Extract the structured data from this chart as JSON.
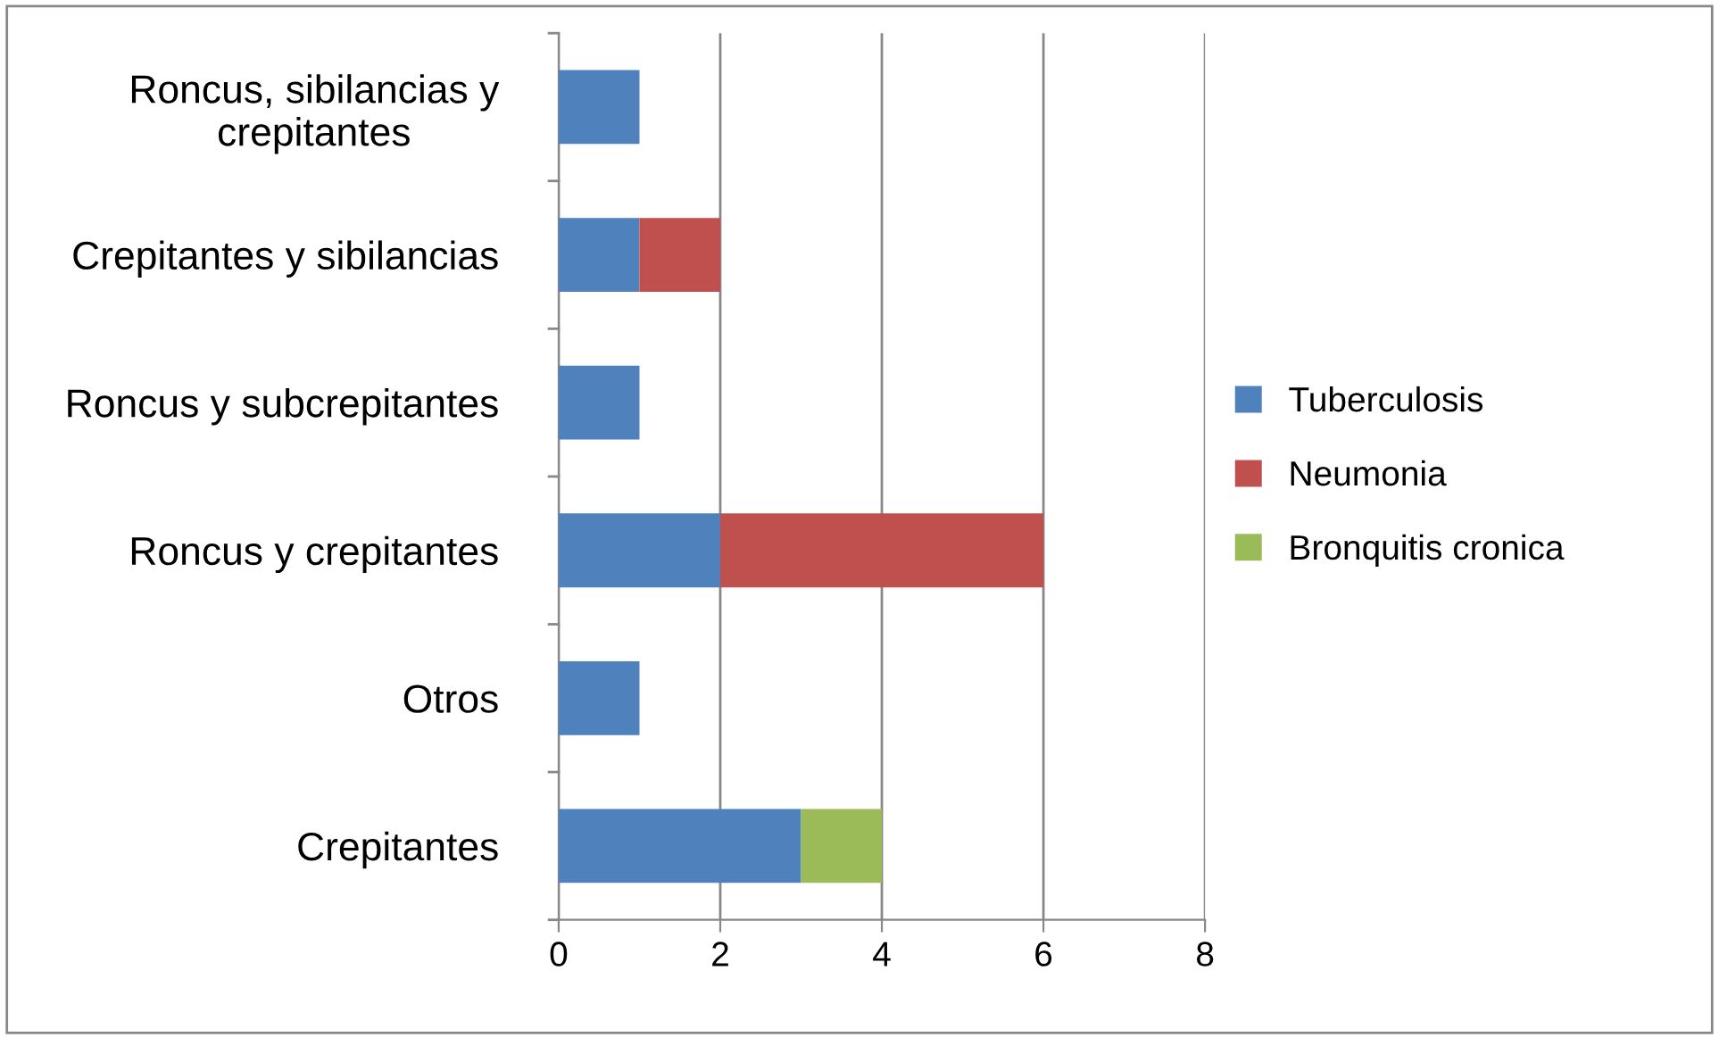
{
  "chart_data": {
    "type": "bar",
    "orientation": "horizontal",
    "stacked": true,
    "categories": [
      "Roncus, sibilancias y crepitantes",
      "Crepitantes y sibilancias",
      "Roncus y subcrepitantes",
      "Roncus y crepitantes",
      "Otros",
      "Crepitantes"
    ],
    "series": [
      {
        "name": "Tuberculosis",
        "color": "#4f81bd",
        "values": [
          1,
          1,
          1,
          2,
          1,
          3
        ]
      },
      {
        "name": "Neumonia",
        "color": "#c0504d",
        "values": [
          null,
          1,
          null,
          4,
          null,
          null
        ]
      },
      {
        "name": "Bronquitis cronica",
        "color": "#9bbb59",
        "values": [
          null,
          null,
          null,
          null,
          null,
          1
        ]
      }
    ],
    "xlim": [
      0,
      8
    ],
    "xticks": [
      0,
      2,
      4,
      6,
      8
    ],
    "grid": "x",
    "legend": "right"
  }
}
